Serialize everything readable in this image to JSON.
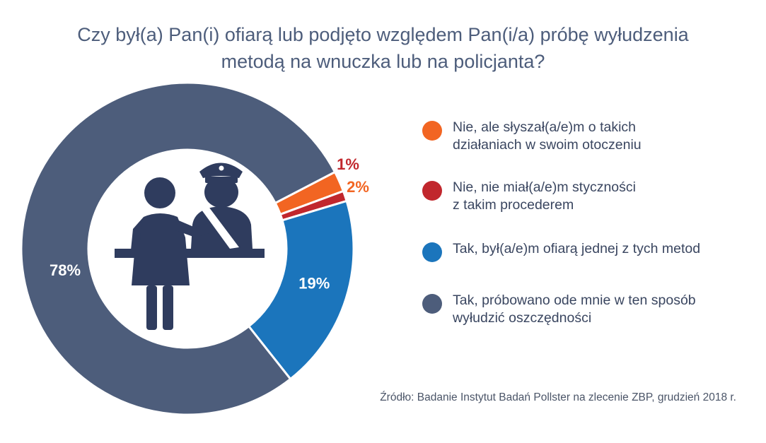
{
  "title_line1": "Czy był(a) Pan(i) ofiarą lub podjęto względem Pan(i/a) próbę wyłudzenia",
  "title_line2": "metodą na wnuczka lub na policjanta?",
  "source": "Źródło: Badanie Instytut Badań Pollster na zlecenie ZBP, grudzień 2018 r.",
  "chart_data": {
    "type": "pie",
    "variant": "donut",
    "title": "Czy był(a) Pan(i) ofiarą lub podjęto względem Pan(i/a) próbę wyłudzenia metodą na wnuczka lub na policjanta?",
    "slices": [
      {
        "label": "Nie, ale słyszał(a/e)m o takich działaniach w swoim otoczeniu",
        "value": 2,
        "display": "2%",
        "color": "#f26522"
      },
      {
        "label": "Nie, nie miał(a/e)m styczności z takim procederem",
        "value": 1,
        "display": "1%",
        "color": "#c1272d"
      },
      {
        "label": "Tak, był(a/e)m ofiarą jednej z tych metod",
        "value": 19,
        "display": "19%",
        "color": "#1b75bc"
      },
      {
        "label": "Tak, próbowano ode mnie w ten sposób wyłudzić oszczędności",
        "value": 78,
        "display": "78%",
        "color": "#4d5d7b"
      }
    ],
    "legend_position": "right"
  },
  "legend": [
    {
      "line1": "Nie, ale słyszał(a/e)m o takich",
      "line2": "działaniach w swoim otoczeniu",
      "color": "#f26522"
    },
    {
      "line1": "Nie, nie miał(a/e)m styczności",
      "line2": "z takim procederem",
      "color": "#c1272d"
    },
    {
      "line1": "Tak, był(a/e)m ofiarą jednej z tych metod",
      "line2": "",
      "color": "#1b75bc"
    },
    {
      "line1": "Tak, próbowano ode mnie w ten sposób",
      "line2": "wyłudzić oszczędności",
      "color": "#4d5d7b"
    }
  ],
  "illustration": {
    "icon": "woman-and-police-officer-icon",
    "color": "#2f3c5e"
  }
}
